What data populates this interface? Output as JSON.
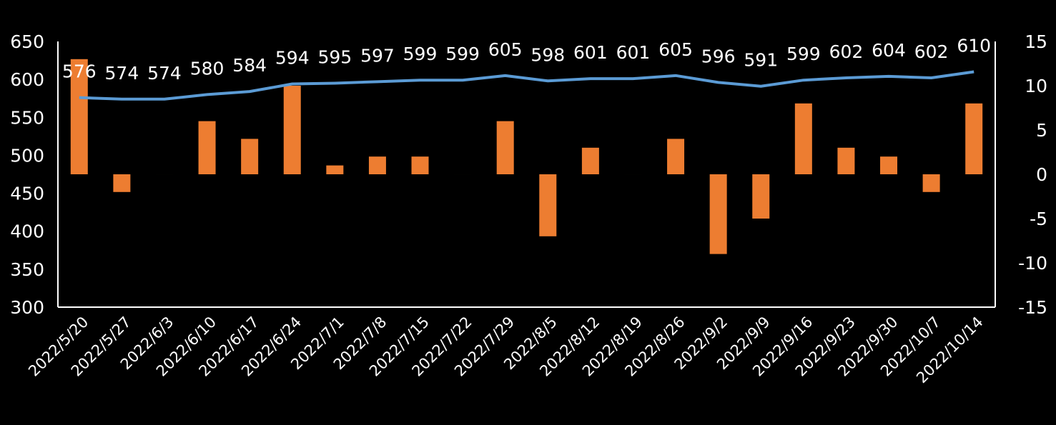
{
  "chart_data": {
    "type": "bar+line",
    "title": "",
    "categories": [
      "2022/5/20",
      "2022/5/27",
      "2022/6/3",
      "2022/6/10",
      "2022/6/17",
      "2022/6/24",
      "2022/7/1",
      "2022/7/8",
      "2022/7/15",
      "2022/7/22",
      "2022/7/29",
      "2022/8/5",
      "2022/8/12",
      "2022/8/19",
      "2022/8/26",
      "2022/9/2",
      "2022/9/9",
      "2022/9/16",
      "2022/9/23",
      "2022/9/30",
      "2022/10/7",
      "2022/10/14"
    ],
    "series": [
      {
        "name": "line",
        "type": "line",
        "axis": "left",
        "color": "#5B9BD5",
        "values": [
          576,
          574,
          574,
          580,
          584,
          594,
          595,
          597,
          599,
          599,
          605,
          598,
          601,
          601,
          605,
          596,
          591,
          599,
          602,
          604,
          602,
          610
        ],
        "data_labels": true
      },
      {
        "name": "bars",
        "type": "bar",
        "axis": "right",
        "color": "#ED7D31",
        "values": [
          13,
          -2,
          0,
          6,
          4,
          10,
          1,
          2,
          2,
          0,
          6,
          -7,
          3,
          0,
          4,
          -9,
          -5,
          8,
          3,
          2,
          -2,
          8
        ]
      }
    ],
    "left_axis": {
      "min": 300,
      "max": 650,
      "ticks": [
        300,
        350,
        400,
        450,
        500,
        550,
        600,
        650
      ]
    },
    "right_axis": {
      "min": -15,
      "max": 15,
      "ticks": [
        -15,
        -10,
        -5,
        0,
        5,
        10,
        15
      ]
    },
    "grid": false,
    "legend": "none"
  }
}
